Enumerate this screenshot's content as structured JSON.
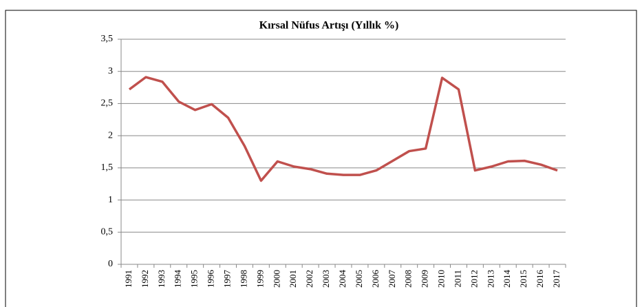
{
  "chart_data": {
    "type": "line",
    "title": "Kırsal Nüfus Artışı (Yıllık %)",
    "categories": [
      "1991",
      "1992",
      "1993",
      "1994",
      "1995",
      "1996",
      "1997",
      "1998",
      "1999",
      "2000",
      "2001",
      "2002",
      "2003",
      "2004",
      "2005",
      "2006",
      "2007",
      "2008",
      "2009",
      "2010",
      "2011",
      "2012",
      "2013",
      "2014",
      "2015",
      "2016",
      "2017"
    ],
    "series": [
      {
        "color": "#c0504d",
        "values": [
          2.72,
          2.91,
          2.84,
          2.53,
          2.4,
          2.49,
          2.28,
          1.84,
          1.3,
          1.6,
          1.52,
          1.48,
          1.41,
          1.39,
          1.39,
          1.46,
          1.61,
          1.76,
          1.8,
          2.9,
          2.72,
          1.46,
          1.52,
          1.6,
          1.61,
          1.55,
          1.46
        ]
      }
    ],
    "ylim": [
      0,
      3.5
    ],
    "yticks": [
      0,
      {
        "value": 0.5,
        "label": "0,5"
      },
      1,
      {
        "value": 1.5,
        "label": "1,5"
      },
      2,
      {
        "value": 2.5,
        "label": "2,5"
      },
      3,
      {
        "value": 3.5,
        "label": "3,5"
      }
    ],
    "grid": true
  }
}
